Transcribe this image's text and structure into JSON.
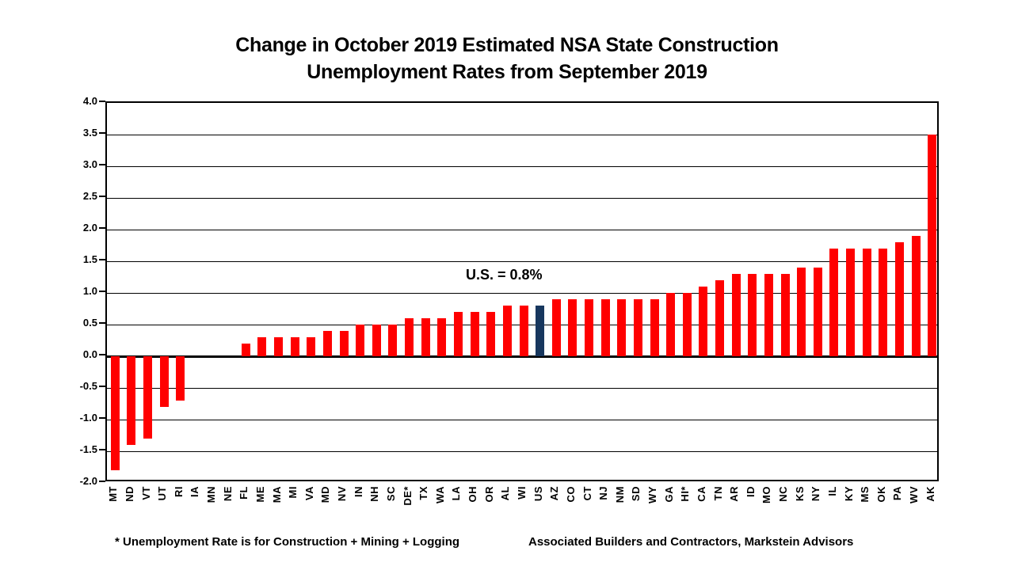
{
  "chart_data": {
    "type": "bar",
    "title": "Change in October 2019 Estimated NSA State Construction Unemployment Rates from September 2019",
    "title_lines": [
      "Change in October 2019 Estimated NSA State Construction",
      "Unemployment Rates from September 2019"
    ],
    "categories": [
      "MT",
      "ND",
      "VT",
      "UT",
      "RI",
      "IA",
      "MN",
      "NE",
      "FL",
      "ME",
      "MA",
      "MI",
      "VA",
      "MD",
      "NV",
      "IN",
      "NH",
      "SC",
      "DE*",
      "TX",
      "WA",
      "LA",
      "OH",
      "OR",
      "AL",
      "WI",
      "US",
      "AZ",
      "CO",
      "CT",
      "NJ",
      "NM",
      "SD",
      "WY",
      "GA",
      "HI*",
      "CA",
      "TN",
      "AR",
      "ID",
      "MO",
      "NC",
      "KS",
      "NY",
      "IL",
      "KY",
      "MS",
      "OK",
      "PA",
      "WV",
      "AK"
    ],
    "values": [
      -1.8,
      -1.4,
      -1.3,
      -0.8,
      -0.7,
      0.0,
      0.0,
      0.0,
      0.2,
      0.3,
      0.3,
      0.3,
      0.3,
      0.4,
      0.4,
      0.5,
      0.5,
      0.5,
      0.6,
      0.6,
      0.6,
      0.7,
      0.7,
      0.7,
      0.8,
      0.8,
      0.8,
      0.9,
      0.9,
      0.9,
      0.9,
      0.9,
      0.9,
      0.9,
      1.0,
      1.0,
      1.1,
      1.2,
      1.3,
      1.3,
      1.3,
      1.3,
      1.4,
      1.4,
      1.7,
      1.7,
      1.7,
      1.7,
      1.8,
      1.9,
      3.5
    ],
    "highlight_category": "US",
    "annotation": {
      "text": "U.S. = 0.8%",
      "target": "US"
    },
    "xlabel": "",
    "ylabel": "",
    "ylim": [
      -2.0,
      4.0
    ],
    "ytick_step": 0.5,
    "grid": "horizontal",
    "legend": "none",
    "bar_color": "#FF0000",
    "highlight_color": "#17375E",
    "text_color": "#000000",
    "footnote": "* Unemployment Rate is for Construction + Mining + Logging",
    "source": "Associated Builders and Contractors, Markstein Advisors"
  }
}
